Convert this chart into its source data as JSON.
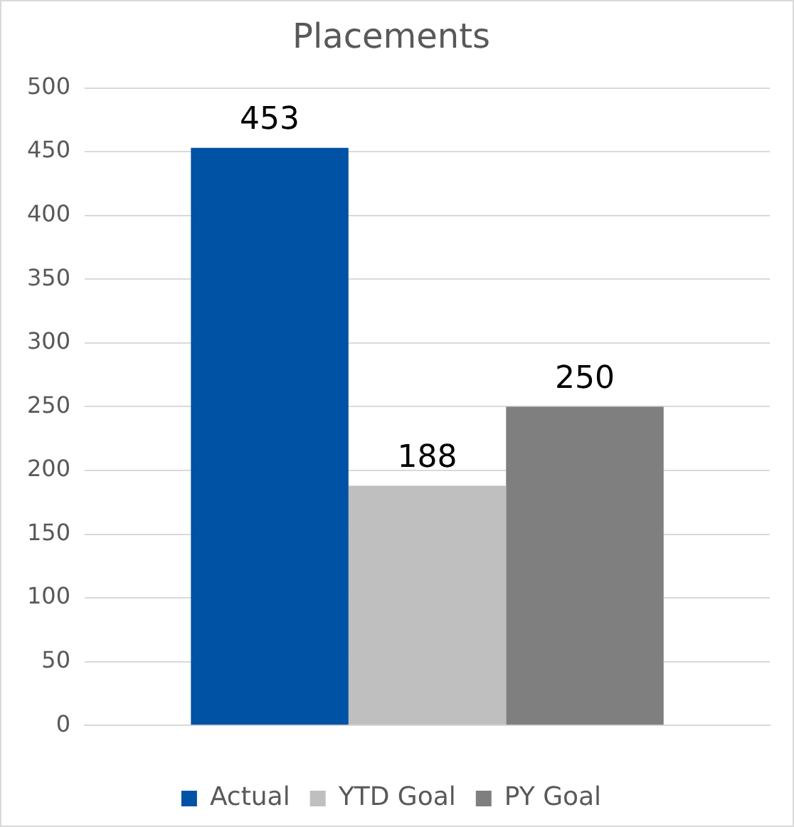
{
  "chart_data": {
    "type": "bar",
    "title": "Placements",
    "categories": [
      null
    ],
    "series": [
      {
        "name": "Actual",
        "color": "#0052a5",
        "values": [
          453
        ]
      },
      {
        "name": "YTD Goal",
        "color": "#bfbfbf",
        "values": [
          188
        ]
      },
      {
        "name": "PY Goal",
        "color": "#7f7f7f",
        "values": [
          250
        ]
      }
    ],
    "ylim": [
      0,
      500
    ],
    "yticks": [
      0,
      50,
      100,
      150,
      200,
      250,
      300,
      350,
      400,
      450,
      500
    ],
    "grid": "y",
    "legend": "bottom",
    "data_labels": true
  }
}
